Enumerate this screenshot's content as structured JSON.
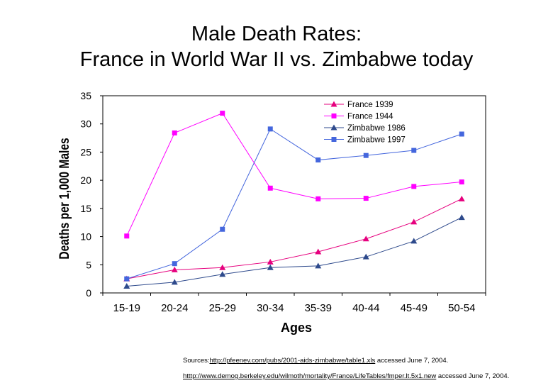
{
  "slide": {
    "title_line1": "Male Death Rates:",
    "title_line2": "France in World War II vs. Zimbabwe today",
    "source1_prefix": "Sources:",
    "source1_url": "http://pfeenev.com/pubs/2001-aids-zimbabwe/table1.xls",
    "source1_suffix": " accessed June 7, 2004.",
    "source2_url": "htttp://www.demog.berkeley.edu/wilmoth/mortality/France/LifeTables/fmper.lt.5x1.new",
    "source2_suffix": "  accessed June 7, 2004."
  },
  "chart_data": {
    "type": "line",
    "title": "",
    "xlabel": "Ages",
    "ylabel": "Deaths per 1,000 Males",
    "categories": [
      "15-19",
      "20-24",
      "25-29",
      "30-34",
      "35-39",
      "40-44",
      "45-49",
      "50-54"
    ],
    "ylim": [
      0,
      35
    ],
    "yticks": [
      0,
      5,
      10,
      15,
      20,
      25,
      30,
      35
    ],
    "grid": false,
    "legend_position": "top-right",
    "series": [
      {
        "name": "France 1939",
        "color": "#E6007E",
        "marker": "triangle",
        "values": [
          2.5,
          4.1,
          4.5,
          5.5,
          7.3,
          9.6,
          12.6,
          16.7
        ]
      },
      {
        "name": "France 1944",
        "color": "#FF00FF",
        "marker": "square",
        "values": [
          10.1,
          28.4,
          31.9,
          18.6,
          16.7,
          16.8,
          18.9,
          19.7
        ]
      },
      {
        "name": "Zimbabwe 1986",
        "color": "#2E4A8C",
        "marker": "triangle",
        "values": [
          1.2,
          1.9,
          3.3,
          4.5,
          4.8,
          6.4,
          9.2,
          13.4
        ]
      },
      {
        "name": "Zimbabwe 1997",
        "color": "#4466DD",
        "marker": "square",
        "values": [
          2.5,
          5.2,
          11.3,
          29.1,
          23.6,
          24.4,
          25.3,
          28.2
        ]
      }
    ]
  }
}
